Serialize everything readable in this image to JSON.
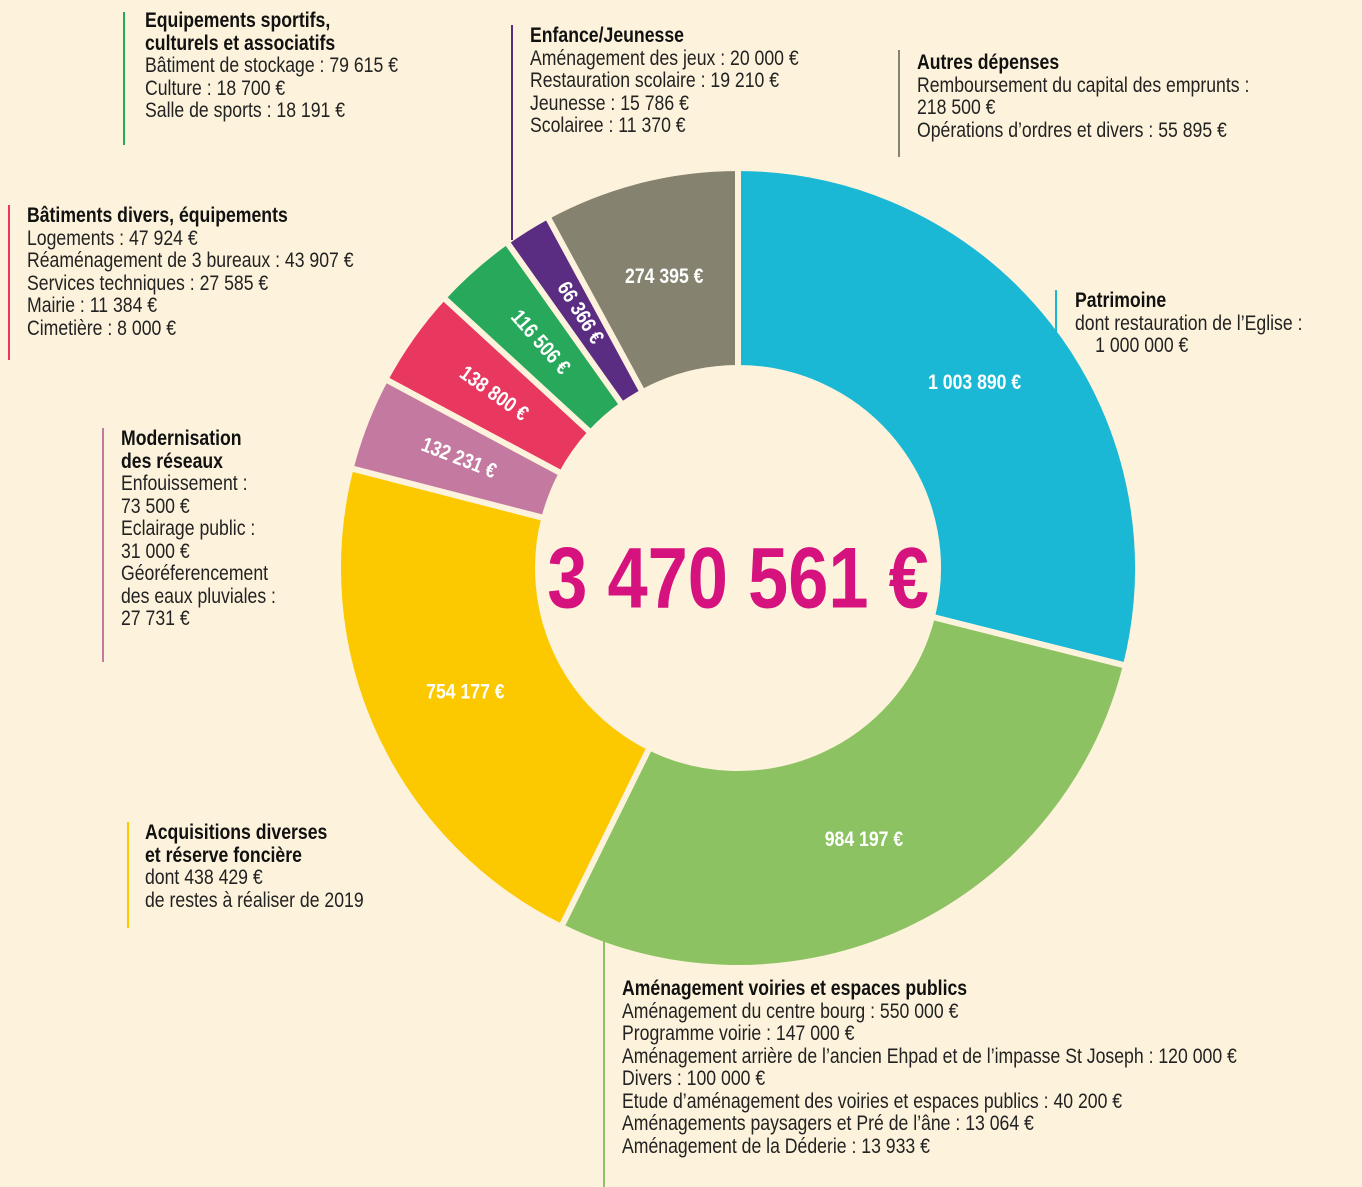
{
  "chart_data": {
    "type": "donut",
    "center_label": "3 470 561 €",
    "values": [
      1003890,
      984197,
      754177,
      132231,
      138800,
      116506,
      66366,
      274395
    ],
    "value_labels": [
      "1 003 890 €",
      "984 197 €",
      "754 177 €",
      "132 231 €",
      "138 800 €",
      "116 506 €",
      "66 366 €",
      "274 395 €"
    ],
    "colors": [
      "#1ab8d4",
      "#8dc263",
      "#fcc800",
      "#c47aa0",
      "#e8385f",
      "#27a85a",
      "#5b2d82",
      "#85826f"
    ],
    "annotations": [
      {
        "title": [
          "Patrimoine"
        ],
        "lines": [
          "dont restauration de l’Eglise :",
          "1 000 000 €"
        ]
      },
      {
        "title": [
          "Aménagement voiries et espaces publics"
        ],
        "lines": [
          "Aménagement du centre bourg : 550 000 €",
          "Programme voirie : 147 000 €",
          "Aménagement arrière de l’ancien Ehpad et de l’impasse St Joseph : 120 000 €",
          "Divers : 100 000 €",
          "Etude d’aménagement des voiries et espaces publics : 40 200 €",
          "Aménagements paysagers et Pré de l’âne : 13 064 €",
          "Aménagement de la Déderie : 13 933 €"
        ]
      },
      {
        "title": [
          "Acquisitions diverses",
          "et réserve foncière"
        ],
        "lines": [
          "dont 438 429 €",
          "de restes à réaliser de 2019"
        ]
      },
      {
        "title": [
          "Modernisation",
          "des réseaux"
        ],
        "lines": [
          "Enfouissement :",
          "73 500 €",
          "Eclairage public :",
          "31 000 €",
          "Géoréferencement",
          "des eaux pluviales :",
          "27 731 €"
        ]
      },
      {
        "title": [
          "Bâtiments divers, équipements"
        ],
        "lines": [
          "Logements : 47 924 €",
          "Réaménagement de 3 bureaux : 43 907 €",
          "Services techniques : 27 585 €",
          "Mairie : 11 384 €",
          "Cimetière : 8 000 €"
        ]
      },
      {
        "title": [
          "Equipements sportifs,",
          "culturels et associatifs"
        ],
        "lines": [
          "Bâtiment de stockage : 79 615 €",
          "Culture : 18 700 €",
          "Salle de sports : 18 191 €"
        ]
      },
      {
        "title": [
          "Enfance/Jeunesse"
        ],
        "lines": [
          "Aménagement des jeux : 20 000 €",
          "Restauration scolaire : 19 210 €",
          "Jeunesse : 15 786 €",
          "Scolairee : 11 370 €"
        ]
      },
      {
        "title": [
          "Autres dépenses"
        ],
        "lines": [
          "Remboursement du capital des emprunts :",
          "218 500 €",
          "Opérations d’ordres et divers : 55 895 €"
        ]
      }
    ]
  }
}
